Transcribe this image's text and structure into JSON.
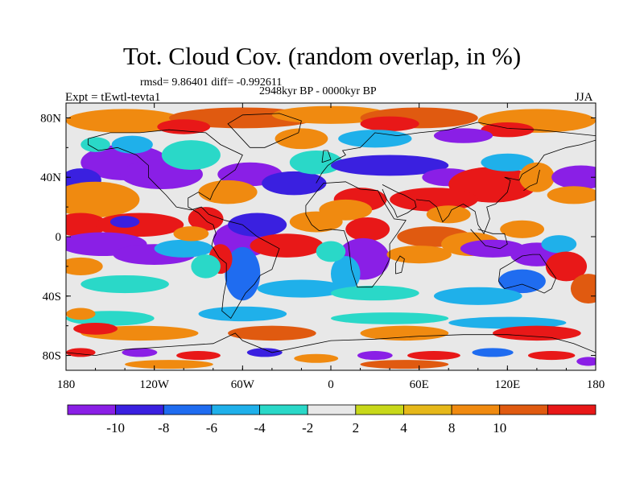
{
  "chart_data": {
    "type": "heatmap",
    "title": "Tot. Cloud Cov. (random overlap, in %)",
    "stats_line": "rmsd= 9.86401 diff= -0.992611",
    "subtitle": "2948kyr BP - 0000kyr BP",
    "left_label": "Expt = tEwtl-tevta1",
    "right_label": "JJA",
    "x_ticks": [
      {
        "value": -180,
        "label": "180"
      },
      {
        "value": -120,
        "label": "120W"
      },
      {
        "value": -60,
        "label": "60W"
      },
      {
        "value": 0,
        "label": "0"
      },
      {
        "value": 60,
        "label": "60E"
      },
      {
        "value": 120,
        "label": "120E"
      },
      {
        "value": 180,
        "label": "180"
      }
    ],
    "y_ticks": [
      {
        "value": 80,
        "label": "80N"
      },
      {
        "value": 40,
        "label": "40N"
      },
      {
        "value": 0,
        "label": "0"
      },
      {
        "value": -40,
        "label": "40S"
      },
      {
        "value": -80,
        "label": "80S"
      }
    ],
    "xlim": [
      -180,
      180
    ],
    "ylim": [
      -90,
      90
    ],
    "levels": [
      -10,
      -8,
      -6,
      -4,
      -2,
      2,
      4,
      8,
      10
    ],
    "level_labels": [
      "-10",
      "-8",
      "-6",
      "-4",
      "-2",
      "2",
      "4",
      "8",
      "10"
    ],
    "colors": [
      "#8a1fe6",
      "#3a20e0",
      "#1f6cf0",
      "#1fb0ea",
      "#2ad8c8",
      "#e8e8e8",
      "#c8d81a",
      "#e6b81a",
      "#f08a10",
      "#e05a10",
      "#e81818"
    ],
    "background_color": "#e8e8e8"
  }
}
